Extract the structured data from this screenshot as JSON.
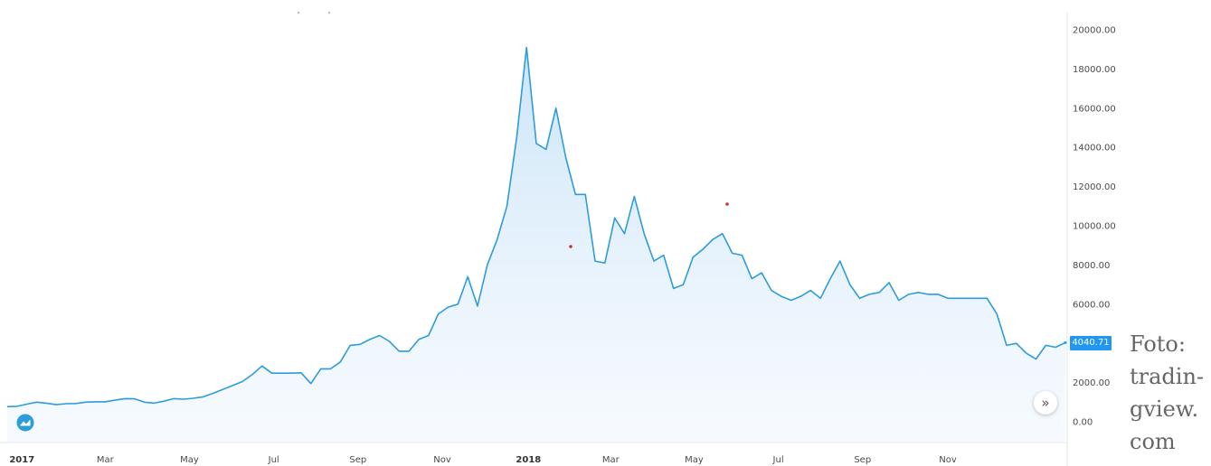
{
  "chart_data": {
    "type": "area",
    "title": "",
    "xlabel": "",
    "ylabel": "",
    "ylim": [
      0,
      20000
    ],
    "y_ticks": [
      "20000.00",
      "18000.00",
      "16000.00",
      "14000.00",
      "12000.00",
      "10000.00",
      "8000.00",
      "6000.00",
      "4000.00",
      "2000.00",
      "0.00"
    ],
    "x_ticks": [
      {
        "label": "2017",
        "index": 1.5,
        "bold": true
      },
      {
        "label": "Mar",
        "index": 10
      },
      {
        "label": "May",
        "index": 18.6
      },
      {
        "label": "Jul",
        "index": 27.2
      },
      {
        "label": "Sep",
        "index": 35.8
      },
      {
        "label": "Nov",
        "index": 44.4
      },
      {
        "label": "2018",
        "index": 53.2,
        "bold": true
      },
      {
        "label": "Mar",
        "index": 61.6
      },
      {
        "label": "May",
        "index": 70.1
      },
      {
        "label": "Jul",
        "index": 78.7
      },
      {
        "label": "Sep",
        "index": 87.3
      },
      {
        "label": "Nov",
        "index": 96.0
      }
    ],
    "series": [
      {
        "values": [
          770,
          790,
          900,
          1000,
          950,
          870,
          920,
          930,
          1000,
          1020,
          1020,
          1100,
          1180,
          1170,
          1000,
          950,
          1050,
          1180,
          1150,
          1200,
          1270,
          1450,
          1650,
          1850,
          2050,
          2400,
          2850,
          2480,
          2480,
          2480,
          2500,
          1950,
          2700,
          2700,
          3050,
          3900,
          3950,
          4200,
          4400,
          4100,
          3600,
          3600,
          4200,
          4400,
          5500,
          5850,
          6000,
          7400,
          5900,
          8000,
          9300,
          11000,
          14500,
          19100,
          14200,
          13900,
          16000,
          13500,
          11600,
          11600,
          8200,
          8100,
          10400,
          9600,
          11500,
          9600,
          8200,
          8500,
          6800,
          7000,
          8400,
          8800,
          9300,
          9600,
          8600,
          8500,
          7300,
          7600,
          6700,
          6400,
          6200,
          6400,
          6700,
          6300,
          7300,
          8200,
          7000,
          6300,
          6500,
          6600,
          7100,
          6200,
          6500,
          6600,
          6500,
          6500,
          6300,
          6300,
          6300,
          6300,
          6300,
          5500,
          3900,
          4000,
          3500,
          3200,
          3900,
          3800,
          4040.71
        ]
      }
    ],
    "last_price": "4040.71",
    "line_color": "#2d9cdb",
    "fill_color": "#c9e3f8"
  },
  "credit": {
    "lines": [
      "Foto:",
      "tradin-",
      "gview.",
      "com"
    ]
  },
  "icons": {
    "scroll_button": "double-chevron-right-icon",
    "logo": "tradingview-logo-icon"
  }
}
